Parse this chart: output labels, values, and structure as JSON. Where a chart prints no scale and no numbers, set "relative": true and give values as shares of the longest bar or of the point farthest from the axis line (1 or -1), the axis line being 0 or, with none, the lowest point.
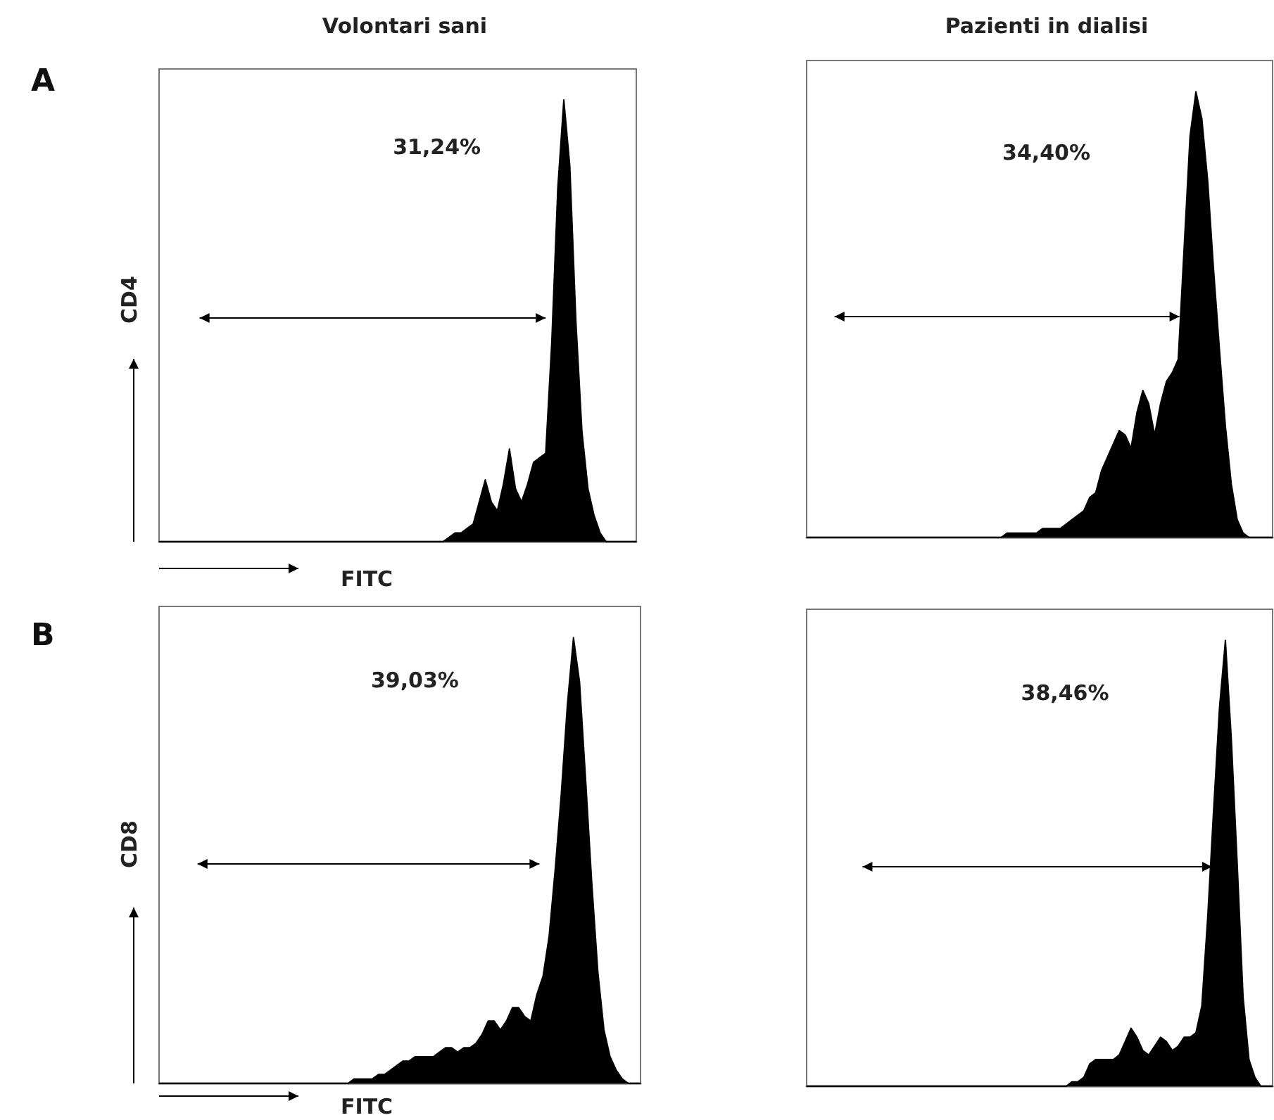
{
  "chart_data": [
    {
      "type": "area",
      "relative": true,
      "tick_labels": false,
      "title": "Volontari sani",
      "xlabel": "FITC",
      "ylabel": "CD4",
      "annotations": [
        "A",
        "31,24%"
      ],
      "categories": [
        null,
        null,
        null,
        null,
        null,
        null,
        null,
        null,
        null,
        null,
        null,
        null,
        null,
        null,
        null,
        null,
        null,
        null,
        null,
        null,
        null,
        null,
        null,
        null,
        null,
        null,
        null,
        null,
        null,
        null,
        null,
        null,
        null,
        null,
        null,
        null,
        null,
        null,
        null,
        null,
        null,
        null,
        null,
        null,
        null,
        null,
        null,
        null,
        null,
        null,
        null,
        null,
        null,
        null,
        null,
        null,
        null,
        null,
        null,
        null,
        null,
        null,
        null,
        null,
        null,
        null,
        null,
        null,
        null,
        null,
        null,
        null,
        null,
        null,
        null,
        null,
        null,
        null,
        null,
        null
      ],
      "series": [
        {
          "color": "#000000",
          "values": [
            0,
            0,
            0,
            0,
            0,
            0,
            0,
            0,
            0,
            0,
            0,
            0,
            0,
            0,
            0,
            0,
            0,
            0,
            0,
            0,
            0,
            0,
            0,
            0,
            0,
            0,
            0,
            0,
            0,
            0,
            0,
            0,
            0,
            0,
            0,
            0,
            0,
            0,
            0,
            0,
            0,
            0,
            0,
            0,
            0,
            0,
            0,
            0,
            0.01,
            0.02,
            0.02,
            0.03,
            0.04,
            0.09,
            0.14,
            0.09,
            0.07,
            0.13,
            0.21,
            0.12,
            0.09,
            0.13,
            0.18,
            0.19,
            0.2,
            0.45,
            0.8,
            1,
            0.85,
            0.5,
            0.25,
            0.12,
            0.06,
            0.02,
            0,
            0,
            0,
            0,
            0,
            0
          ]
        }
      ]
    },
    {
      "type": "area",
      "relative": true,
      "tick_labels": false,
      "title": "Pazienti in dialisi",
      "annotations": [
        "34,40%"
      ],
      "categories": [
        null,
        null,
        null,
        null,
        null,
        null,
        null,
        null,
        null,
        null,
        null,
        null,
        null,
        null,
        null,
        null,
        null,
        null,
        null,
        null,
        null,
        null,
        null,
        null,
        null,
        null,
        null,
        null,
        null,
        null,
        null,
        null,
        null,
        null,
        null,
        null,
        null,
        null,
        null,
        null,
        null,
        null,
        null,
        null,
        null,
        null,
        null,
        null,
        null,
        null,
        null,
        null,
        null,
        null,
        null,
        null,
        null,
        null,
        null,
        null,
        null,
        null,
        null,
        null,
        null,
        null,
        null,
        null,
        null,
        null,
        null,
        null,
        null,
        null,
        null,
        null,
        null,
        null,
        null,
        null
      ],
      "series": [
        {
          "color": "#000000",
          "values": [
            0,
            0,
            0,
            0,
            0,
            0,
            0,
            0,
            0,
            0,
            0,
            0,
            0,
            0,
            0,
            0,
            0,
            0,
            0,
            0,
            0,
            0,
            0,
            0,
            0,
            0,
            0,
            0,
            0,
            0,
            0,
            0,
            0,
            0,
            0.01,
            0.01,
            0.01,
            0.01,
            0.01,
            0.01,
            0.02,
            0.02,
            0.02,
            0.02,
            0.03,
            0.04,
            0.05,
            0.06,
            0.09,
            0.1,
            0.15,
            0.18,
            0.21,
            0.24,
            0.23,
            0.2,
            0.28,
            0.33,
            0.3,
            0.23,
            0.3,
            0.35,
            0.37,
            0.4,
            0.65,
            0.9,
            1,
            0.94,
            0.8,
            0.6,
            0.42,
            0.25,
            0.12,
            0.04,
            0.01,
            0,
            0,
            0,
            0,
            0
          ]
        }
      ]
    },
    {
      "type": "area",
      "relative": true,
      "tick_labels": false,
      "xlabel": "FITC",
      "ylabel": "CD8",
      "annotations": [
        "B",
        "39,03%"
      ],
      "categories": [
        null,
        null,
        null,
        null,
        null,
        null,
        null,
        null,
        null,
        null,
        null,
        null,
        null,
        null,
        null,
        null,
        null,
        null,
        null,
        null,
        null,
        null,
        null,
        null,
        null,
        null,
        null,
        null,
        null,
        null,
        null,
        null,
        null,
        null,
        null,
        null,
        null,
        null,
        null,
        null,
        null,
        null,
        null,
        null,
        null,
        null,
        null,
        null,
        null,
        null,
        null,
        null,
        null,
        null,
        null,
        null,
        null,
        null,
        null,
        null,
        null,
        null,
        null,
        null,
        null,
        null,
        null,
        null,
        null,
        null,
        null,
        null,
        null,
        null,
        null,
        null,
        null,
        null,
        null,
        null
      ],
      "series": [
        {
          "color": "#000000",
          "values": [
            0,
            0,
            0,
            0,
            0,
            0,
            0,
            0,
            0,
            0,
            0,
            0,
            0,
            0,
            0,
            0,
            0,
            0,
            0,
            0,
            0,
            0,
            0,
            0,
            0,
            0,
            0,
            0,
            0,
            0,
            0,
            0,
            0.01,
            0.01,
            0.01,
            0.01,
            0.02,
            0.02,
            0.03,
            0.04,
            0.05,
            0.05,
            0.06,
            0.06,
            0.06,
            0.06,
            0.07,
            0.08,
            0.08,
            0.07,
            0.08,
            0.08,
            0.09,
            0.11,
            0.14,
            0.14,
            0.12,
            0.14,
            0.17,
            0.17,
            0.15,
            0.14,
            0.2,
            0.24,
            0.33,
            0.48,
            0.65,
            0.85,
            1,
            0.9,
            0.68,
            0.45,
            0.25,
            0.12,
            0.06,
            0.03,
            0.01,
            0,
            0,
            0
          ]
        }
      ]
    },
    {
      "type": "area",
      "relative": true,
      "tick_labels": false,
      "annotations": [
        "38,46%"
      ],
      "categories": [
        null,
        null,
        null,
        null,
        null,
        null,
        null,
        null,
        null,
        null,
        null,
        null,
        null,
        null,
        null,
        null,
        null,
        null,
        null,
        null,
        null,
        null,
        null,
        null,
        null,
        null,
        null,
        null,
        null,
        null,
        null,
        null,
        null,
        null,
        null,
        null,
        null,
        null,
        null,
        null,
        null,
        null,
        null,
        null,
        null,
        null,
        null,
        null,
        null,
        null,
        null,
        null,
        null,
        null,
        null,
        null,
        null,
        null,
        null,
        null,
        null,
        null,
        null,
        null,
        null,
        null,
        null,
        null,
        null,
        null,
        null,
        null,
        null,
        null,
        null,
        null,
        null,
        null,
        null,
        null
      ],
      "series": [
        {
          "color": "#000000",
          "values": [
            0,
            0,
            0,
            0,
            0,
            0,
            0,
            0,
            0,
            0,
            0,
            0,
            0,
            0,
            0,
            0,
            0,
            0,
            0,
            0,
            0,
            0,
            0,
            0,
            0,
            0,
            0,
            0,
            0,
            0,
            0,
            0,
            0,
            0,
            0,
            0,
            0,
            0,
            0,
            0,
            0,
            0,
            0,
            0,
            0,
            0.01,
            0.01,
            0.02,
            0.05,
            0.06,
            0.06,
            0.06,
            0.06,
            0.07,
            0.1,
            0.13,
            0.11,
            0.08,
            0.07,
            0.09,
            0.11,
            0.1,
            0.08,
            0.09,
            0.11,
            0.11,
            0.12,
            0.18,
            0.38,
            0.62,
            0.85,
            1,
            0.78,
            0.5,
            0.2,
            0.06,
            0.02,
            0,
            0,
            0
          ]
        }
      ]
    }
  ]
}
